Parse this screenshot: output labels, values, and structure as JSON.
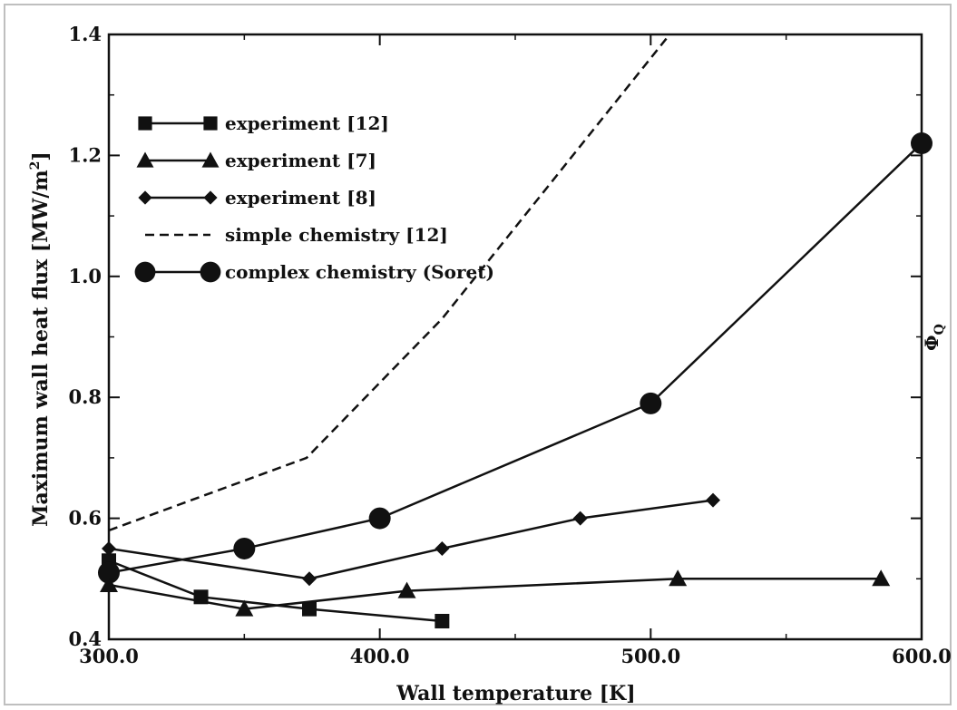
{
  "chart_data": {
    "type": "line",
    "xlabel": "Wall temperature [K]",
    "ylabel": "Maximum wall heat flux [MW/m",
    "ylabel_superscript": "2",
    "ylabel_tail": "]",
    "right_label": "Φ",
    "right_label_sub": "Q",
    "xlim": [
      300,
      600
    ],
    "ylim": [
      0.4,
      1.4
    ],
    "x_ticks": [
      300,
      400,
      500,
      600
    ],
    "x_tick_labels": [
      "300.0",
      "400.0",
      "500.0",
      "600.0"
    ],
    "y_ticks": [
      0.4,
      0.6,
      0.8,
      1.0,
      1.2,
      1.4
    ],
    "y_tick_labels": [
      "0.4",
      "0.6",
      "0.8",
      "1.0",
      "1.2",
      "1.4"
    ],
    "legend_position": "upper-left",
    "series": [
      {
        "name": "experiment [12]",
        "marker": "square",
        "dash": false,
        "x": [
          300,
          334,
          374,
          423
        ],
        "y": [
          0.53,
          0.47,
          0.45,
          0.43
        ]
      },
      {
        "name": "experiment [7]",
        "marker": "triangle",
        "dash": false,
        "x": [
          300,
          350,
          410,
          510,
          585
        ],
        "y": [
          0.49,
          0.45,
          0.48,
          0.5,
          0.5
        ]
      },
      {
        "name": "experiment [8]",
        "marker": "diamond",
        "dash": false,
        "x": [
          300,
          374,
          423,
          474,
          523
        ],
        "y": [
          0.55,
          0.5,
          0.55,
          0.6,
          0.63
        ]
      },
      {
        "name": "simple chemistry [12]",
        "marker": "none",
        "dash": true,
        "x": [
          300,
          373,
          423,
          507
        ],
        "y": [
          0.58,
          0.7,
          0.93,
          1.4
        ]
      },
      {
        "name": "complex chemistry (Soret)",
        "marker": "circle",
        "dash": false,
        "x": [
          300,
          350,
          400,
          500,
          600
        ],
        "y": [
          0.51,
          0.55,
          0.6,
          0.79,
          1.22
        ]
      }
    ]
  }
}
